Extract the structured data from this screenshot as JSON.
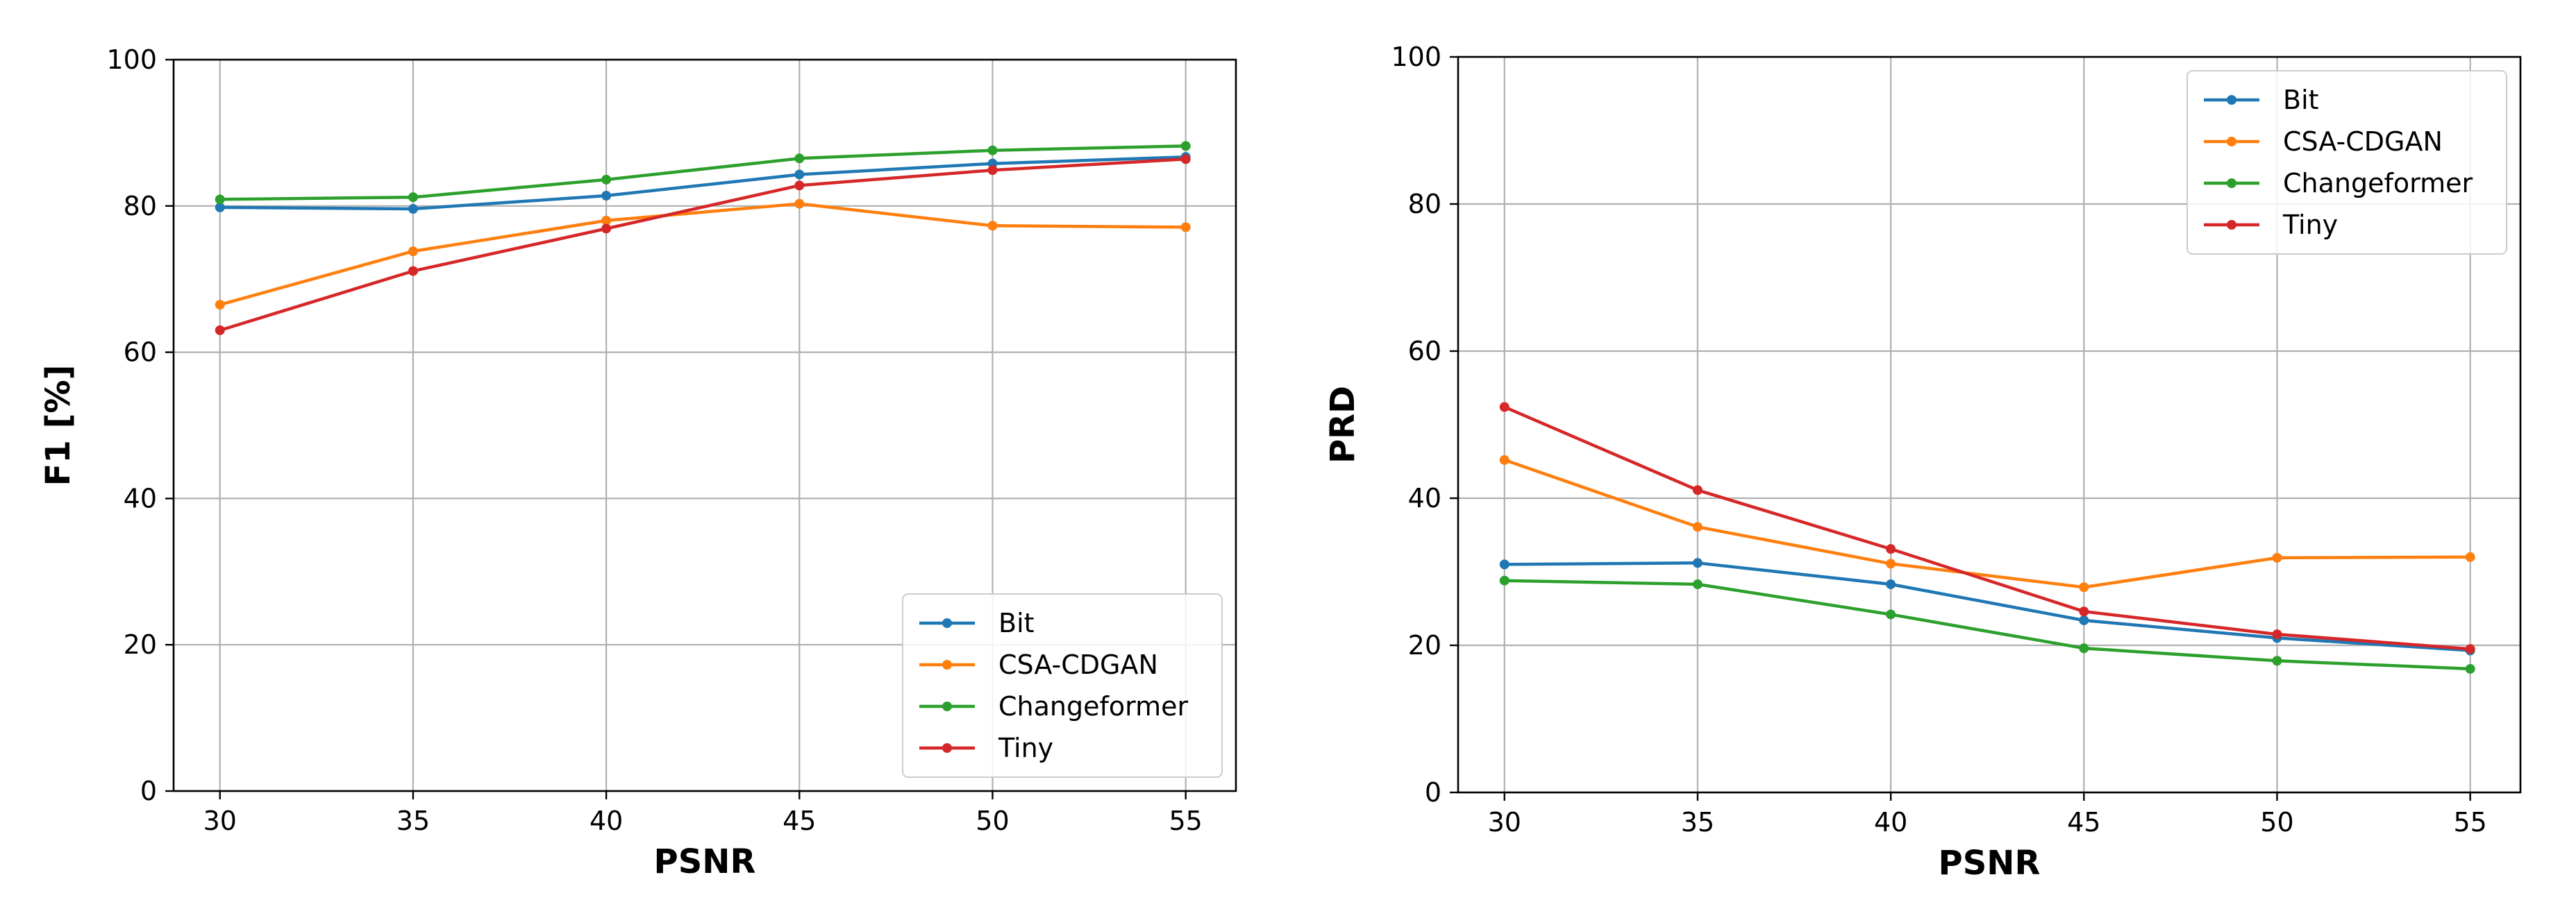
{
  "chart_data": [
    {
      "type": "line",
      "xlabel": "PSNR",
      "ylabel": "F1 [%]",
      "x": [
        30,
        35,
        40,
        45,
        50,
        55
      ],
      "xticks": [
        "30",
        "35",
        "40",
        "45",
        "50",
        "55"
      ],
      "xlim": [
        28.8,
        56.3
      ],
      "ylim": [
        0,
        100
      ],
      "yticks": [
        "0",
        "20",
        "40",
        "60",
        "80",
        "100"
      ],
      "grid": true,
      "legend_position": "lower right",
      "series": [
        {
          "name": "Bit",
          "color": "#1f77b4",
          "values": [
            79.8,
            79.6,
            81.4,
            84.3,
            85.8,
            86.7
          ]
        },
        {
          "name": "CSA-CDGAN",
          "color": "#ff7f0e",
          "values": [
            66.5,
            73.8,
            78.0,
            80.3,
            77.3,
            77.1
          ]
        },
        {
          "name": "Changeformer",
          "color": "#2ca02c",
          "values": [
            80.9,
            81.2,
            83.6,
            86.5,
            87.6,
            88.2
          ]
        },
        {
          "name": "Tiny",
          "color": "#d62728",
          "values": [
            63.0,
            71.1,
            76.9,
            82.8,
            84.9,
            86.4
          ]
        }
      ]
    },
    {
      "type": "line",
      "xlabel": "PSNR",
      "ylabel": "PRD",
      "x": [
        30,
        35,
        40,
        45,
        50,
        55
      ],
      "xticks": [
        "30",
        "35",
        "40",
        "45",
        "50",
        "55"
      ],
      "xlim": [
        28.8,
        56.3
      ],
      "ylim": [
        0,
        100
      ],
      "yticks": [
        "0",
        "20",
        "40",
        "60",
        "80",
        "100"
      ],
      "grid": true,
      "legend_position": "upper right",
      "series": [
        {
          "name": "Bit",
          "color": "#1f77b4",
          "values": [
            31.0,
            31.2,
            28.3,
            23.4,
            21.0,
            19.3
          ]
        },
        {
          "name": "CSA-CDGAN",
          "color": "#ff7f0e",
          "values": [
            45.2,
            36.1,
            31.1,
            27.9,
            31.9,
            32.0
          ]
        },
        {
          "name": "Changeformer",
          "color": "#2ca02c",
          "values": [
            28.8,
            28.3,
            24.2,
            19.6,
            17.9,
            16.8
          ]
        },
        {
          "name": "Tiny",
          "color": "#d62728",
          "values": [
            52.4,
            41.1,
            33.1,
            24.6,
            21.5,
            19.5
          ]
        }
      ]
    }
  ]
}
